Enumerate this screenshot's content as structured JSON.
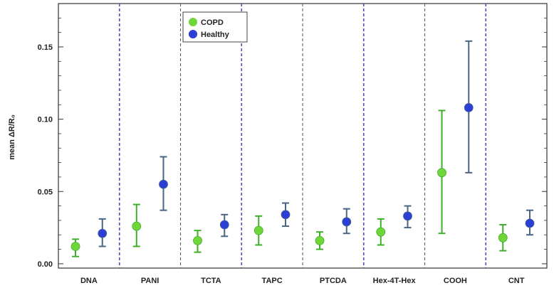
{
  "chart_data": {
    "type": "scatter",
    "title": "",
    "xlabel": "",
    "ylabel": "mean ΔR/R₀",
    "ylim": [
      -0.003,
      0.18
    ],
    "yticks": [
      0.0,
      0.05,
      0.1,
      0.15
    ],
    "ytick_labels": [
      "0.00",
      "0.05",
      "0.10",
      "0.15"
    ],
    "categories": [
      "DNA",
      "PANI",
      "TCTA",
      "TAPC",
      "PTCDA",
      "Hex-4T-Hex",
      "COOH",
      "CNT"
    ],
    "series": [
      {
        "name": "COPD",
        "color": "#6fd63a",
        "bar_color": "#3fae2a",
        "values": [
          0.012,
          0.026,
          0.016,
          0.023,
          0.016,
          0.022,
          0.063,
          0.018
        ],
        "err_low": [
          0.005,
          0.012,
          0.008,
          0.013,
          0.01,
          0.013,
          0.021,
          0.009
        ],
        "err_high": [
          0.017,
          0.041,
          0.023,
          0.033,
          0.022,
          0.031,
          0.106,
          0.027
        ]
      },
      {
        "name": "Healthy",
        "color": "#2b3fd6",
        "bar_color": "#4a6585",
        "values": [
          0.021,
          0.055,
          0.027,
          0.034,
          0.029,
          0.033,
          0.108,
          0.028
        ],
        "err_low": [
          0.012,
          0.037,
          0.019,
          0.026,
          0.021,
          0.025,
          0.063,
          0.02
        ],
        "err_high": [
          0.031,
          0.074,
          0.034,
          0.042,
          0.038,
          0.04,
          0.154,
          0.037
        ]
      }
    ],
    "separator_colors": [
      "#4b4fb8",
      "#5a5a7a"
    ],
    "legend_position": "top-left inside plot"
  }
}
